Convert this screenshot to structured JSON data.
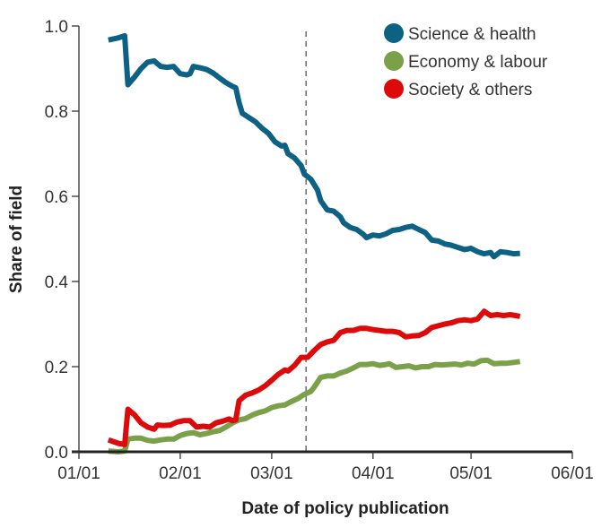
{
  "chart_data": {
    "type": "line",
    "title": "",
    "xlabel": "Date of policy publication",
    "ylabel": "Share of field",
    "x_unit": "day of year (0 = 01/01)",
    "xlim": [
      0,
      151
    ],
    "ylim": [
      0,
      1.0
    ],
    "grid": false,
    "legend_position": "top-right",
    "x_ticks": [
      {
        "day": 0,
        "label": "01/01"
      },
      {
        "day": 31,
        "label": "02/01"
      },
      {
        "day": 59,
        "label": "03/01"
      },
      {
        "day": 90,
        "label": "04/01"
      },
      {
        "day": 120,
        "label": "05/01"
      },
      {
        "day": 151,
        "label": "06/01"
      }
    ],
    "y_ticks": [
      {
        "value": 0.0,
        "label": "0.0"
      },
      {
        "value": 0.2,
        "label": "0.2"
      },
      {
        "value": 0.4,
        "label": "0.4"
      },
      {
        "value": 0.6,
        "label": "0.6"
      },
      {
        "value": 0.8,
        "label": "0.8"
      },
      {
        "value": 1.0,
        "label": "1.0"
      }
    ],
    "reference_line": {
      "day": 69.5,
      "style": "dashed"
    },
    "series": [
      {
        "name": "Science & health",
        "color": "#0d6185",
        "points": [
          [
            9,
            0.967
          ],
          [
            12,
            0.972
          ],
          [
            14,
            0.977
          ],
          [
            15,
            0.862
          ],
          [
            17,
            0.88
          ],
          [
            19,
            0.9
          ],
          [
            21,
            0.915
          ],
          [
            23,
            0.918
          ],
          [
            25,
            0.905
          ],
          [
            27,
            0.903
          ],
          [
            29,
            0.905
          ],
          [
            31,
            0.888
          ],
          [
            33,
            0.885
          ],
          [
            34,
            0.888
          ],
          [
            35,
            0.905
          ],
          [
            37,
            0.902
          ],
          [
            39,
            0.898
          ],
          [
            41,
            0.89
          ],
          [
            43,
            0.878
          ],
          [
            45,
            0.867
          ],
          [
            47,
            0.858
          ],
          [
            48,
            0.855
          ],
          [
            49,
            0.82
          ],
          [
            50,
            0.795
          ],
          [
            52,
            0.785
          ],
          [
            54,
            0.775
          ],
          [
            56,
            0.76
          ],
          [
            58,
            0.748
          ],
          [
            60,
            0.728
          ],
          [
            62,
            0.718
          ],
          [
            63,
            0.72
          ],
          [
            64,
            0.7
          ],
          [
            66,
            0.69
          ],
          [
            68,
            0.672
          ],
          [
            69,
            0.652
          ],
          [
            71,
            0.64
          ],
          [
            73,
            0.615
          ],
          [
            74,
            0.59
          ],
          [
            76,
            0.568
          ],
          [
            78,
            0.565
          ],
          [
            80,
            0.552
          ],
          [
            81,
            0.538
          ],
          [
            83,
            0.527
          ],
          [
            85,
            0.522
          ],
          [
            87,
            0.511
          ],
          [
            88,
            0.503
          ],
          [
            90,
            0.509
          ],
          [
            92,
            0.507
          ],
          [
            94,
            0.512
          ],
          [
            96,
            0.52
          ],
          [
            98,
            0.522
          ],
          [
            100,
            0.527
          ],
          [
            102,
            0.53
          ],
          [
            104,
            0.522
          ],
          [
            106,
            0.515
          ],
          [
            108,
            0.497
          ],
          [
            110,
            0.495
          ],
          [
            112,
            0.488
          ],
          [
            114,
            0.485
          ],
          [
            116,
            0.48
          ],
          [
            118,
            0.475
          ],
          [
            120,
            0.478
          ],
          [
            122,
            0.47
          ],
          [
            124,
            0.465
          ],
          [
            126,
            0.468
          ],
          [
            127,
            0.458
          ],
          [
            129,
            0.47
          ],
          [
            131,
            0.468
          ],
          [
            133,
            0.465
          ],
          [
            135,
            0.466
          ]
        ]
      },
      {
        "name": "Economy & labour",
        "color": "#7ba04a",
        "points": [
          [
            9,
            0.002
          ],
          [
            12,
            0.0
          ],
          [
            14,
            0.002
          ],
          [
            15,
            0.03
          ],
          [
            17,
            0.032
          ],
          [
            19,
            0.032
          ],
          [
            21,
            0.027
          ],
          [
            23,
            0.025
          ],
          [
            25,
            0.028
          ],
          [
            27,
            0.03
          ],
          [
            29,
            0.03
          ],
          [
            31,
            0.038
          ],
          [
            33,
            0.043
          ],
          [
            35,
            0.045
          ],
          [
            37,
            0.04
          ],
          [
            39,
            0.043
          ],
          [
            41,
            0.047
          ],
          [
            43,
            0.05
          ],
          [
            45,
            0.058
          ],
          [
            47,
            0.068
          ],
          [
            49,
            0.075
          ],
          [
            51,
            0.078
          ],
          [
            53,
            0.086
          ],
          [
            55,
            0.092
          ],
          [
            57,
            0.096
          ],
          [
            59,
            0.104
          ],
          [
            61,
            0.108
          ],
          [
            63,
            0.11
          ],
          [
            65,
            0.118
          ],
          [
            67,
            0.125
          ],
          [
            69,
            0.135
          ],
          [
            71,
            0.142
          ],
          [
            72,
            0.152
          ],
          [
            74,
            0.175
          ],
          [
            76,
            0.178
          ],
          [
            78,
            0.178
          ],
          [
            80,
            0.185
          ],
          [
            82,
            0.19
          ],
          [
            84,
            0.197
          ],
          [
            86,
            0.205
          ],
          [
            88,
            0.205
          ],
          [
            90,
            0.207
          ],
          [
            92,
            0.203
          ],
          [
            94,
            0.205
          ],
          [
            95,
            0.207
          ],
          [
            97,
            0.198
          ],
          [
            99,
            0.2
          ],
          [
            101,
            0.202
          ],
          [
            103,
            0.197
          ],
          [
            105,
            0.2
          ],
          [
            107,
            0.2
          ],
          [
            109,
            0.205
          ],
          [
            111,
            0.204
          ],
          [
            113,
            0.205
          ],
          [
            115,
            0.206
          ],
          [
            117,
            0.204
          ],
          [
            119,
            0.208
          ],
          [
            121,
            0.206
          ],
          [
            123,
            0.214
          ],
          [
            125,
            0.215
          ],
          [
            127,
            0.207
          ],
          [
            129,
            0.208
          ],
          [
            131,
            0.208
          ],
          [
            133,
            0.21
          ],
          [
            135,
            0.212
          ]
        ]
      },
      {
        "name": "Society & others",
        "color": "#dc0a0a",
        "points": [
          [
            9,
            0.028
          ],
          [
            12,
            0.02
          ],
          [
            14,
            0.017
          ],
          [
            15,
            0.1
          ],
          [
            17,
            0.087
          ],
          [
            19,
            0.068
          ],
          [
            21,
            0.058
          ],
          [
            23,
            0.053
          ],
          [
            24,
            0.063
          ],
          [
            26,
            0.062
          ],
          [
            28,
            0.063
          ],
          [
            30,
            0.07
          ],
          [
            32,
            0.073
          ],
          [
            34,
            0.073
          ],
          [
            36,
            0.058
          ],
          [
            38,
            0.06
          ],
          [
            40,
            0.058
          ],
          [
            42,
            0.068
          ],
          [
            44,
            0.072
          ],
          [
            46,
            0.077
          ],
          [
            47,
            0.073
          ],
          [
            48,
            0.075
          ],
          [
            49,
            0.12
          ],
          [
            51,
            0.133
          ],
          [
            53,
            0.138
          ],
          [
            55,
            0.145
          ],
          [
            57,
            0.155
          ],
          [
            59,
            0.168
          ],
          [
            61,
            0.182
          ],
          [
            63,
            0.192
          ],
          [
            64,
            0.19
          ],
          [
            66,
            0.203
          ],
          [
            68,
            0.222
          ],
          [
            70,
            0.222
          ],
          [
            72,
            0.238
          ],
          [
            74,
            0.252
          ],
          [
            76,
            0.258
          ],
          [
            78,
            0.262
          ],
          [
            80,
            0.28
          ],
          [
            82,
            0.285
          ],
          [
            84,
            0.285
          ],
          [
            86,
            0.29
          ],
          [
            88,
            0.29
          ],
          [
            90,
            0.287
          ],
          [
            92,
            0.285
          ],
          [
            94,
            0.283
          ],
          [
            96,
            0.283
          ],
          [
            98,
            0.28
          ],
          [
            100,
            0.27
          ],
          [
            102,
            0.272
          ],
          [
            104,
            0.273
          ],
          [
            106,
            0.28
          ],
          [
            108,
            0.292
          ],
          [
            110,
            0.296
          ],
          [
            112,
            0.3
          ],
          [
            114,
            0.303
          ],
          [
            116,
            0.308
          ],
          [
            118,
            0.31
          ],
          [
            120,
            0.308
          ],
          [
            122,
            0.312
          ],
          [
            124,
            0.33
          ],
          [
            126,
            0.32
          ],
          [
            128,
            0.322
          ],
          [
            130,
            0.32
          ],
          [
            132,
            0.322
          ],
          [
            135,
            0.318
          ]
        ]
      }
    ]
  }
}
